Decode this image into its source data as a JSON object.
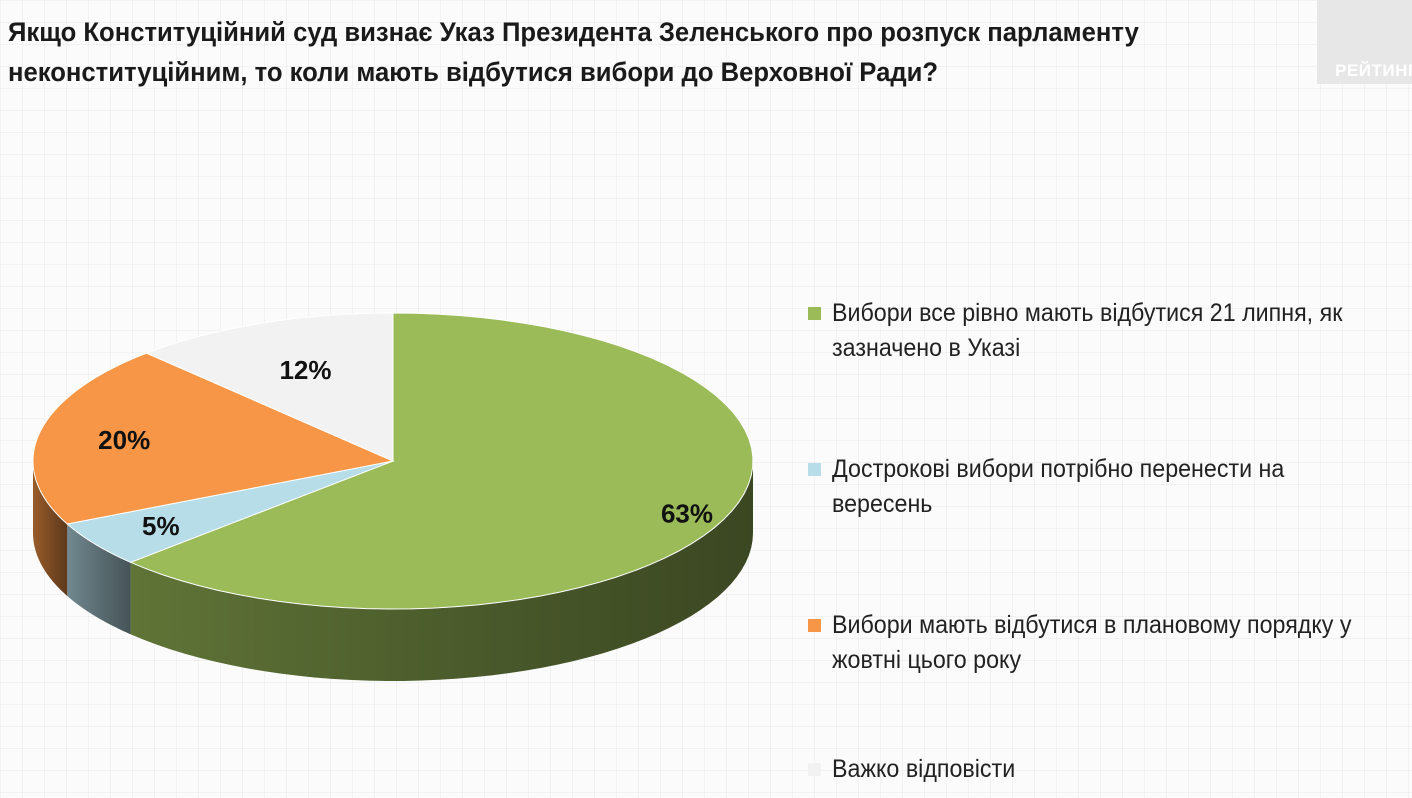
{
  "title": "Якщо Конституційний суд визнає Указ Президента Зеленського про розпуск парламенту неконституційним, то коли мають відбутися вибори до Верховної Ради?",
  "logo_text": "РЕЙТИНГ",
  "chart_data": {
    "type": "pie",
    "title": "Якщо Конституційний суд визнає Указ Президента Зеленського про розпуск парламенту неконституційним, то коли мають відбутися вибори до Верховної Ради?",
    "slices": [
      {
        "label": "Вибори все рівно мають відбутися 21 липня, як зазначено в Указі",
        "value": 63,
        "value_label": "63%",
        "color": "#9bbb59"
      },
      {
        "label": "Дострокові вибори потрібно перенести на вересень",
        "value": 5,
        "value_label": "5%",
        "color": "#b7dde8"
      },
      {
        "label": "Вибори мають відбутися в плановому порядку у жовтні цього року",
        "value": 20,
        "value_label": "20%",
        "color": "#f79646"
      },
      {
        "label": "Важко відповісти",
        "value": 12,
        "value_label": "12%",
        "color": "#f2f2f2"
      }
    ],
    "legend_position": "right"
  }
}
